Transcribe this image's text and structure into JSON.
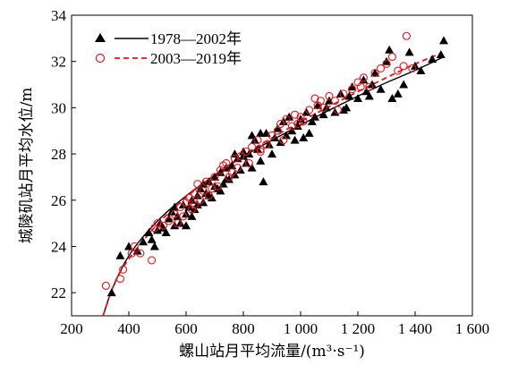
{
  "chart_data": {
    "type": "scatter",
    "xlabel": "螺山站月平均流量/(m³·s⁻¹)",
    "ylabel": "城陵矶站月平均水位/m",
    "xlim": [
      200,
      1600
    ],
    "ylim": [
      21,
      34
    ],
    "xticks": [
      200,
      400,
      600,
      800,
      1000,
      1200,
      1400,
      1600
    ],
    "xtick_labels": [
      "200",
      "400",
      "600",
      "800",
      "1 000",
      "1 200",
      "1 400",
      "1 600"
    ],
    "yticks": [
      22,
      24,
      26,
      28,
      30,
      32,
      34
    ],
    "ytick_labels": [
      "22",
      "24",
      "26",
      "28",
      "30",
      "32",
      "34"
    ],
    "legend_position": "top-left",
    "series": [
      {
        "name": "1978—2002年",
        "marker": "triangle",
        "color": "#000000",
        "line_style": "solid",
        "points": [
          [
            340,
            22.0
          ],
          [
            370,
            23.6
          ],
          [
            400,
            24.0
          ],
          [
            430,
            23.8
          ],
          [
            450,
            24.2
          ],
          [
            470,
            24.6
          ],
          [
            480,
            24.3
          ],
          [
            500,
            24.7
          ],
          [
            510,
            25.0
          ],
          [
            520,
            24.8
          ],
          [
            540,
            25.2
          ],
          [
            550,
            25.5
          ],
          [
            560,
            24.9
          ],
          [
            570,
            25.3
          ],
          [
            580,
            25.0
          ],
          [
            590,
            25.8
          ],
          [
            600,
            25.4
          ],
          [
            610,
            25.7
          ],
          [
            620,
            26.0
          ],
          [
            630,
            25.6
          ],
          [
            640,
            26.2
          ],
          [
            650,
            26.5
          ],
          [
            660,
            25.9
          ],
          [
            670,
            26.3
          ],
          [
            680,
            26.8
          ],
          [
            690,
            26.1
          ],
          [
            700,
            27.0
          ],
          [
            710,
            26.5
          ],
          [
            720,
            27.2
          ],
          [
            730,
            26.7
          ],
          [
            740,
            27.4
          ],
          [
            750,
            26.9
          ],
          [
            760,
            27.5
          ],
          [
            770,
            27.1
          ],
          [
            780,
            27.8
          ],
          [
            790,
            27.3
          ],
          [
            800,
            28.1
          ],
          [
            810,
            27.6
          ],
          [
            820,
            28.0
          ],
          [
            830,
            27.4
          ],
          [
            840,
            28.6
          ],
          [
            850,
            28.2
          ],
          [
            860,
            27.7
          ],
          [
            870,
            26.8
          ],
          [
            880,
            28.9
          ],
          [
            890,
            28.4
          ],
          [
            900,
            28.0
          ],
          [
            910,
            28.7
          ],
          [
            920,
            29.1
          ],
          [
            930,
            28.5
          ],
          [
            940,
            29.4
          ],
          [
            950,
            28.8
          ],
          [
            960,
            29.6
          ],
          [
            970,
            29.0
          ],
          [
            980,
            28.6
          ],
          [
            990,
            29.2
          ],
          [
            1000,
            29.5
          ],
          [
            1010,
            28.7
          ],
          [
            1020,
            29.8
          ],
          [
            1040,
            29.4
          ],
          [
            1060,
            30.1
          ],
          [
            1080,
            29.7
          ],
          [
            1100,
            30.3
          ],
          [
            1120,
            29.8
          ],
          [
            1140,
            30.6
          ],
          [
            1160,
            30.0
          ],
          [
            1180,
            30.9
          ],
          [
            1200,
            30.4
          ],
          [
            1220,
            31.2
          ],
          [
            1240,
            30.5
          ],
          [
            1260,
            31.5
          ],
          [
            1280,
            30.8
          ],
          [
            1300,
            32.0
          ],
          [
            1310,
            32.5
          ],
          [
            1320,
            30.4
          ],
          [
            1340,
            30.6
          ],
          [
            1360,
            31.0
          ],
          [
            1380,
            32.4
          ],
          [
            1400,
            31.8
          ],
          [
            1420,
            31.6
          ],
          [
            1460,
            32.1
          ],
          [
            1490,
            32.3
          ],
          [
            1500,
            32.9
          ],
          [
            1250,
            31.0
          ],
          [
            1230,
            30.7
          ],
          [
            1170,
            30.5
          ],
          [
            1150,
            29.9
          ],
          [
            1090,
            30.0
          ],
          [
            1050,
            29.6
          ],
          [
            1030,
            28.9
          ],
          [
            860,
            28.9
          ],
          [
            830,
            28.8
          ],
          [
            800,
            27.9
          ],
          [
            770,
            28.0
          ],
          [
            740,
            26.9
          ],
          [
            720,
            26.4
          ],
          [
            700,
            26.6
          ],
          [
            680,
            26.2
          ],
          [
            660,
            26.7
          ],
          [
            640,
            25.8
          ],
          [
            620,
            25.3
          ],
          [
            600,
            24.9
          ],
          [
            560,
            25.7
          ],
          [
            530,
            24.6
          ],
          [
            490,
            24.0
          ]
        ]
      },
      {
        "name": "2003—2019年",
        "marker": "circle",
        "color": "#e8141b",
        "line_style": "dashed",
        "points": [
          [
            320,
            22.3
          ],
          [
            370,
            22.6
          ],
          [
            380,
            23.0
          ],
          [
            410,
            23.7
          ],
          [
            420,
            24.0
          ],
          [
            440,
            23.7
          ],
          [
            480,
            23.4
          ],
          [
            490,
            24.8
          ],
          [
            500,
            25.0
          ],
          [
            520,
            24.9
          ],
          [
            540,
            25.1
          ],
          [
            560,
            25.4
          ],
          [
            580,
            25.7
          ],
          [
            590,
            25.3
          ],
          [
            600,
            25.9
          ],
          [
            610,
            26.1
          ],
          [
            620,
            25.6
          ],
          [
            630,
            26.3
          ],
          [
            640,
            26.7
          ],
          [
            650,
            26.0
          ],
          [
            660,
            26.4
          ],
          [
            670,
            26.8
          ],
          [
            690,
            26.5
          ],
          [
            700,
            27.0
          ],
          [
            710,
            26.6
          ],
          [
            720,
            27.3
          ],
          [
            730,
            27.5
          ],
          [
            750,
            27.0
          ],
          [
            770,
            27.8
          ],
          [
            780,
            27.4
          ],
          [
            790,
            27.9
          ],
          [
            810,
            28.1
          ],
          [
            830,
            28.3
          ],
          [
            850,
            28.6
          ],
          [
            860,
            28.2
          ],
          [
            880,
            28.4
          ],
          [
            900,
            28.8
          ],
          [
            920,
            29.0
          ],
          [
            930,
            29.3
          ],
          [
            950,
            29.5
          ],
          [
            970,
            29.2
          ],
          [
            980,
            29.7
          ],
          [
            1000,
            29.6
          ],
          [
            1010,
            29.4
          ],
          [
            1030,
            29.9
          ],
          [
            1050,
            30.4
          ],
          [
            1060,
            30.1
          ],
          [
            1080,
            30.0
          ],
          [
            1100,
            30.5
          ],
          [
            1120,
            30.3
          ],
          [
            1130,
            29.9
          ],
          [
            1180,
            30.8
          ],
          [
            1200,
            31.1
          ],
          [
            1220,
            31.3
          ],
          [
            1240,
            30.9
          ],
          [
            1260,
            31.5
          ],
          [
            1280,
            31.7
          ],
          [
            1300,
            31.9
          ],
          [
            1320,
            32.2
          ],
          [
            1340,
            31.6
          ],
          [
            1360,
            31.8
          ],
          [
            1370,
            33.1
          ],
          [
            1390,
            31.7
          ],
          [
            1210,
            30.9
          ],
          [
            1150,
            30.6
          ],
          [
            1070,
            30.3
          ],
          [
            990,
            29.3
          ],
          [
            940,
            28.6
          ],
          [
            860,
            28.1
          ],
          [
            820,
            27.6
          ],
          [
            760,
            27.2
          ],
          [
            740,
            27.6
          ],
          [
            680,
            26.2
          ],
          [
            630,
            25.8
          ],
          [
            570,
            25.0
          ]
        ]
      }
    ],
    "fit_curves": [
      {
        "series": "1978—2002年",
        "points": [
          [
            310,
            21.0
          ],
          [
            340,
            22.15
          ],
          [
            400,
            23.7
          ],
          [
            500,
            25.15
          ],
          [
            600,
            26.2
          ],
          [
            700,
            27.1
          ],
          [
            800,
            27.9
          ],
          [
            900,
            28.6
          ],
          [
            1000,
            29.25
          ],
          [
            1100,
            29.9
          ],
          [
            1200,
            30.5
          ],
          [
            1300,
            31.1
          ],
          [
            1400,
            31.6
          ],
          [
            1500,
            32.2
          ]
        ]
      },
      {
        "series": "2003—2019年",
        "points": [
          [
            310,
            21.0
          ],
          [
            350,
            22.5
          ],
          [
            400,
            23.5
          ],
          [
            500,
            25.0
          ],
          [
            600,
            26.15
          ],
          [
            700,
            27.1
          ],
          [
            800,
            27.95
          ],
          [
            900,
            28.7
          ],
          [
            1000,
            29.4
          ],
          [
            1100,
            30.05
          ],
          [
            1200,
            30.7
          ],
          [
            1300,
            31.3
          ],
          [
            1400,
            31.9
          ],
          [
            1480,
            32.3
          ]
        ]
      }
    ]
  }
}
